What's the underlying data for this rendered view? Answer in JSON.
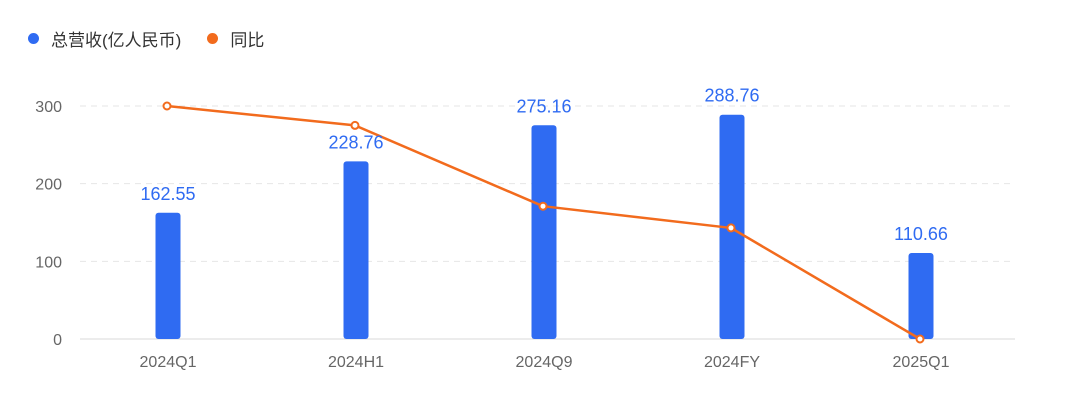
{
  "legend": [
    {
      "label": "总营收(亿人民币)",
      "color": "#2F6BF2",
      "icon": "circle"
    },
    {
      "label": "同比",
      "color": "#F26B1D",
      "icon": "circle"
    }
  ],
  "chart_data": {
    "type": "bar",
    "categories": [
      "2024Q1",
      "2024H1",
      "2024Q9",
      "2024FY",
      "2025Q1"
    ],
    "series": [
      {
        "name": "总营收(亿人民币)",
        "type": "bar",
        "color": "#2F6BF2",
        "values": [
          162.55,
          228.76,
          275.16,
          288.76,
          110.66
        ],
        "labels": [
          "162.55",
          "228.76",
          "275.16",
          "288.76",
          "110.66"
        ]
      },
      {
        "name": "同比",
        "type": "line",
        "color": "#F26B1D",
        "values": [
          300,
          275,
          171,
          143,
          0
        ]
      }
    ],
    "yticks": [
      "0",
      "100",
      "200",
      "300"
    ],
    "ylim": [
      0,
      300
    ],
    "grid": true,
    "legend_position": "top-left"
  }
}
